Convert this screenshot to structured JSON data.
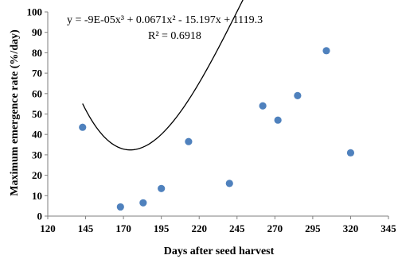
{
  "chart_data": {
    "type": "scatter",
    "xlabel": "Days after seed harvest",
    "ylabel": "Maximum emergence rate (%/day)",
    "xlim": [
      120,
      345
    ],
    "ylim": [
      0,
      100
    ],
    "xticks": [
      120,
      145,
      170,
      195,
      220,
      245,
      270,
      295,
      320,
      345
    ],
    "yticks": [
      0,
      10,
      20,
      30,
      40,
      50,
      60,
      70,
      80,
      90,
      100
    ],
    "grid": false,
    "legend": "none",
    "series": [
      {
        "color": "#4f81bd",
        "points": [
          {
            "x": 143,
            "y": 43.5
          },
          {
            "x": 168,
            "y": 4.5
          },
          {
            "x": 183,
            "y": 6.5
          },
          {
            "x": 195,
            "y": 13.5
          },
          {
            "x": 213,
            "y": 36.5
          },
          {
            "x": 240,
            "y": 16
          },
          {
            "x": 262,
            "y": 54
          },
          {
            "x": 272,
            "y": 47
          },
          {
            "x": 285,
            "y": 59
          },
          {
            "x": 304,
            "y": 81
          },
          {
            "x": 320,
            "y": 31
          }
        ]
      }
    ],
    "trendline": {
      "type": "polynomial",
      "order": 3,
      "coefficients": [
        -9e-05,
        0.0671,
        -15.197,
        1119.3
      ],
      "x_range": [
        143,
        319
      ],
      "color": "#000000"
    },
    "annotations": {
      "equation": "y = -9E-05x³ + 0.0671x² - 15.197x + 1119.3",
      "r_squared": "R² = 0.6918"
    }
  }
}
